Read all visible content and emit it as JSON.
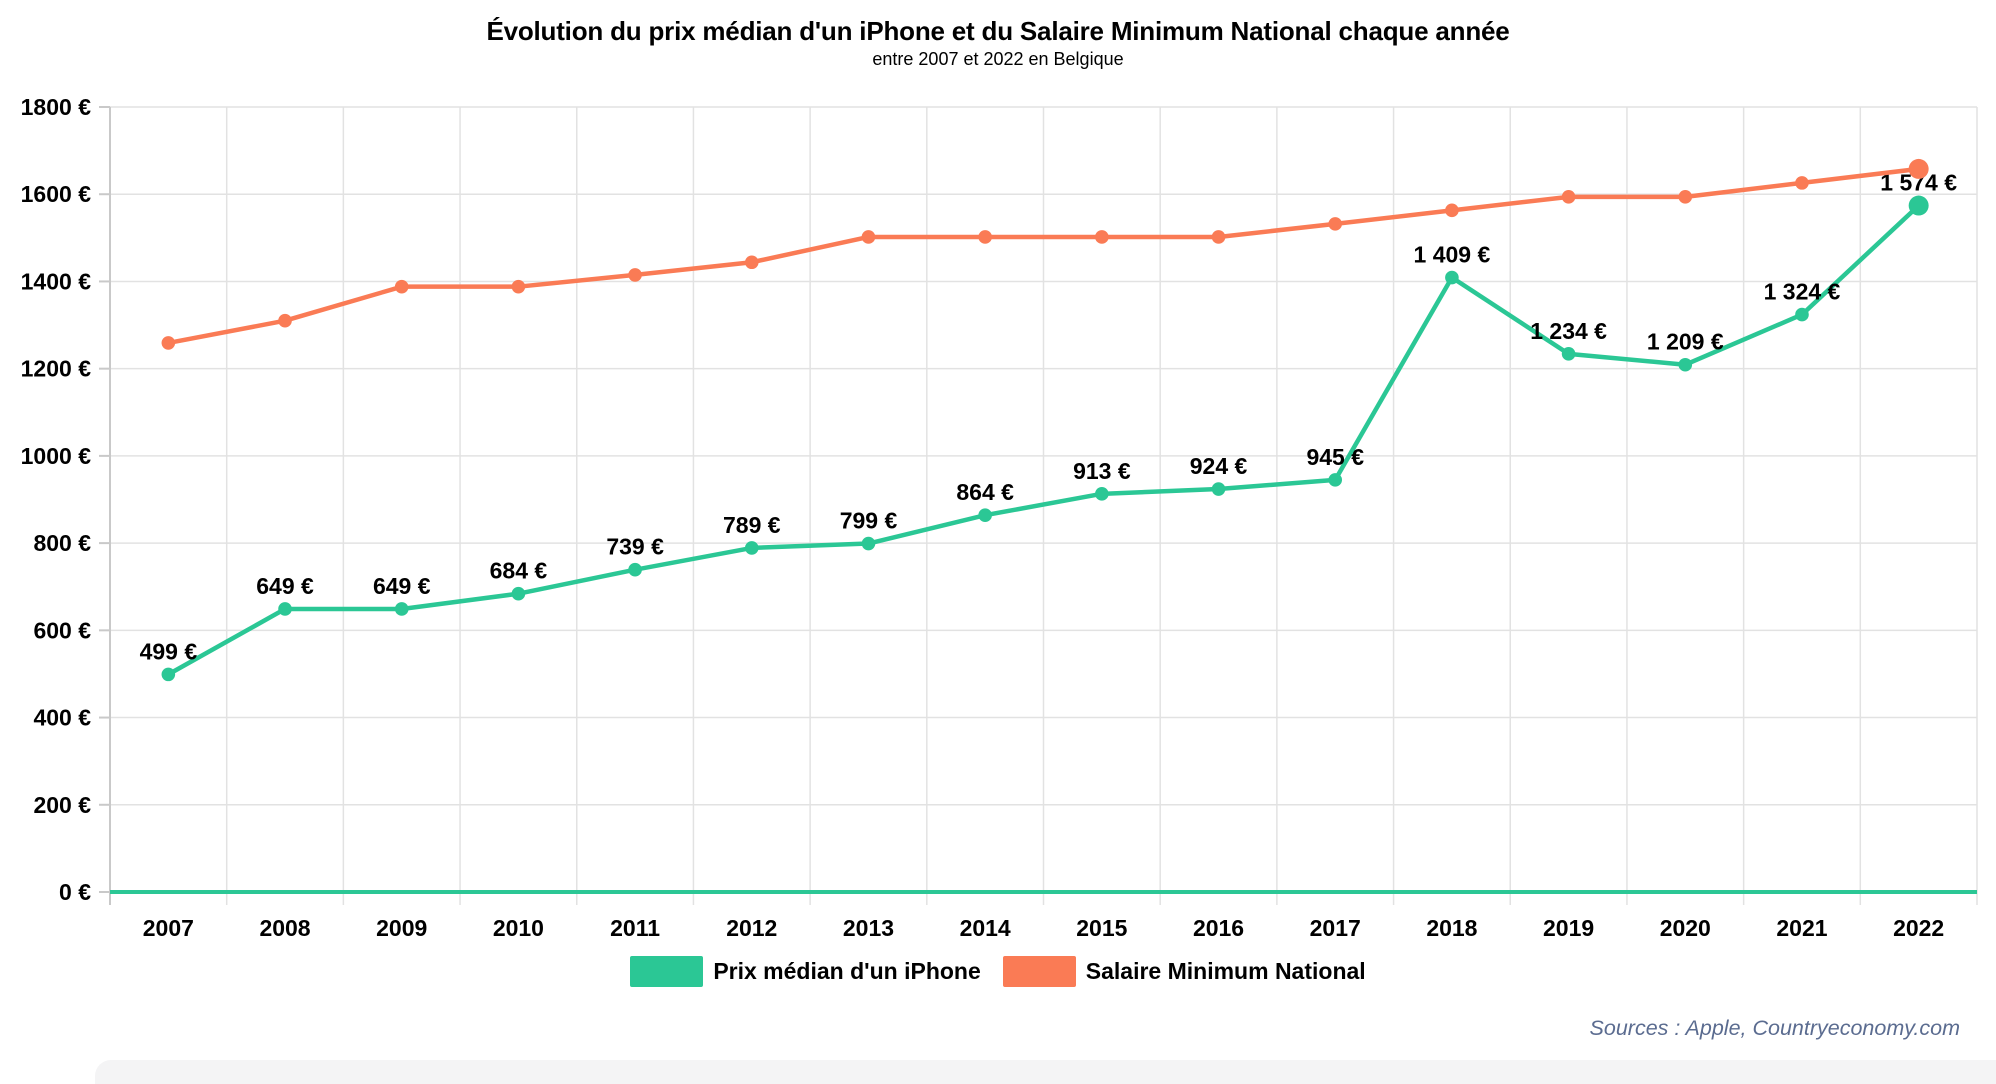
{
  "header": {
    "title": "Évolution du prix médian d'un iPhone et du Salaire Minimum National chaque année",
    "subtitle": "entre 2007 et 2022 en Belgique"
  },
  "source_note": "Sources : Apple, Countryeconomy.com",
  "colors": {
    "iphone": "#2bc795",
    "salary": "#fa7b55",
    "grid": "#e2e2e2",
    "axis": "#c9c9c9",
    "text": "#000000",
    "source_text": "#5b6c90",
    "bottom_strip": "#f4f4f5"
  },
  "chart_data": {
    "type": "line",
    "x": [
      "2007",
      "2008",
      "2009",
      "2010",
      "2011",
      "2012",
      "2013",
      "2014",
      "2015",
      "2016",
      "2017",
      "2018",
      "2019",
      "2020",
      "2021",
      "2022"
    ],
    "series": [
      {
        "name": "Prix médian d'un iPhone",
        "color_key": "iphone",
        "values": [
          499,
          649,
          649,
          684,
          739,
          789,
          799,
          864,
          913,
          924,
          945,
          1409,
          1234,
          1209,
          1324,
          1574
        ],
        "point_labels": [
          "499 €",
          "649 €",
          "649 €",
          "684 €",
          "739 €",
          "789 €",
          "799 €",
          "864 €",
          "913 €",
          "924 €",
          "945 €",
          "1 409 €",
          "1 234 €",
          "1 209 €",
          "1 324 €",
          "1 574 €"
        ],
        "show_point_labels": true
      },
      {
        "name": "Salaire Minimum National",
        "color_key": "salary",
        "values": [
          1259,
          1310,
          1388,
          1388,
          1415,
          1444,
          1502,
          1502,
          1502,
          1502,
          1532,
          1563,
          1594,
          1594,
          1626,
          1658
        ],
        "show_point_labels": false
      }
    ],
    "ylim": [
      0,
      1800
    ],
    "ytick_step": 200,
    "ytick_suffix": " €",
    "grid": true,
    "zero_baseline_color_key": "iphone",
    "legend_position": "bottom"
  },
  "legend": {
    "items": [
      {
        "label": "Prix médian d'un iPhone",
        "color_key": "iphone"
      },
      {
        "label": "Salaire Minimum National",
        "color_key": "salary"
      }
    ]
  }
}
